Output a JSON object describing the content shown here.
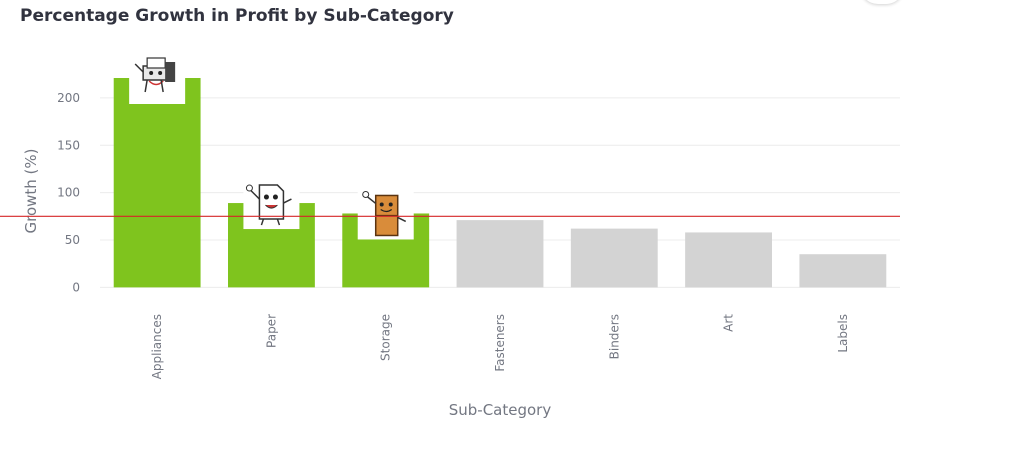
{
  "chart_data": {
    "type": "bar",
    "title": "Percentage Growth in Profit by Sub-Category",
    "xlabel": "Sub-Category",
    "ylabel": "Growth (%)",
    "categories": [
      "Appliances",
      "Paper",
      "Storage",
      "Fasteners",
      "Binders",
      "Art",
      "Labels"
    ],
    "values": [
      221,
      89,
      78,
      71,
      62,
      58,
      35
    ],
    "yticks": [
      0,
      50,
      100,
      150,
      200
    ],
    "ylim": [
      -7,
      240
    ],
    "reference_line": {
      "value": 75,
      "color": "#d62728"
    },
    "highlight_color": "#7fc41e",
    "base_color": "#d3d3d3",
    "highlighted": [
      "Appliances",
      "Paper",
      "Storage"
    ],
    "icons": {
      "Appliances": "printer-mascot-icon",
      "Paper": "paper-mascot-icon",
      "Storage": "cabinet-mascot-icon"
    },
    "grid": true
  }
}
